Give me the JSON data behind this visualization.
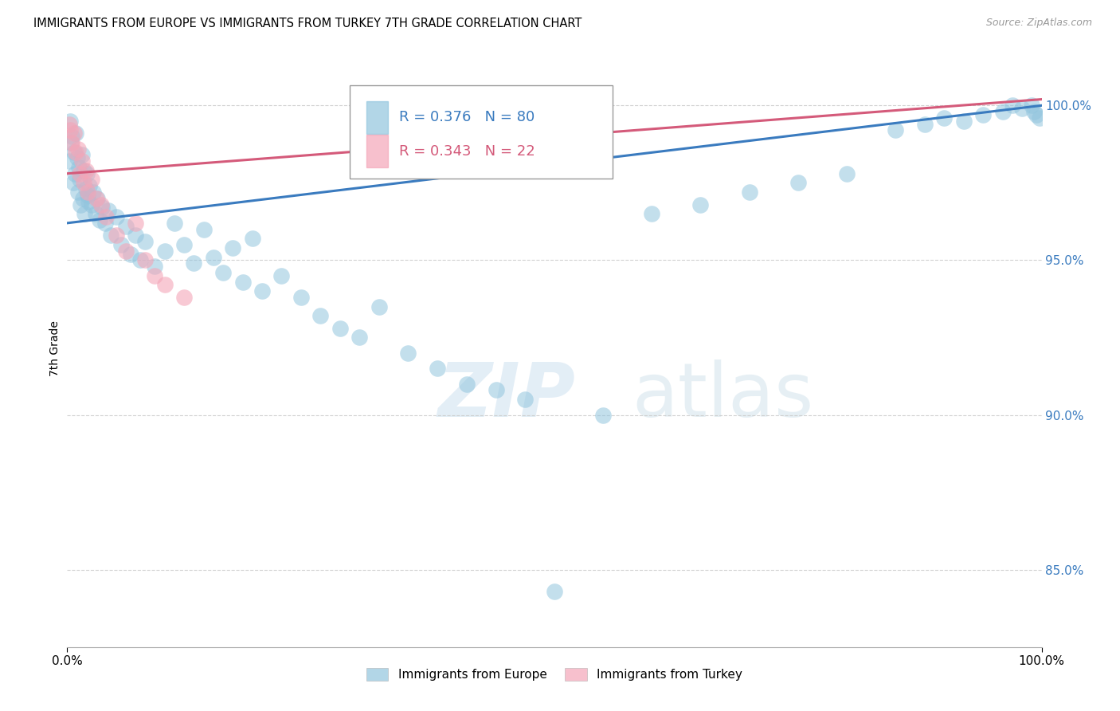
{
  "title": "IMMIGRANTS FROM EUROPE VS IMMIGRANTS FROM TURKEY 7TH GRADE CORRELATION CHART",
  "source": "Source: ZipAtlas.com",
  "ylabel_label": "7th Grade",
  "xmin": 0.0,
  "xmax": 100.0,
  "ymin": 82.5,
  "ymax": 101.8,
  "R_europe": 0.376,
  "N_europe": 80,
  "R_turkey": 0.343,
  "N_turkey": 22,
  "europe_color": "#92c5de",
  "turkey_color": "#f4a6b8",
  "europe_line_color": "#3a7bbf",
  "turkey_line_color": "#d45a7a",
  "legend_europe": "Immigrants from Europe",
  "legend_turkey": "Immigrants from Turkey",
  "watermark_zip": "ZIP",
  "watermark_atlas": "atlas",
  "yticks": [
    85.0,
    90.0,
    95.0,
    100.0
  ],
  "ytick_labels": [
    "85.0%",
    "90.0%",
    "95.0%",
    "100.0%"
  ],
  "xticks": [
    0.0,
    100.0
  ],
  "xtick_labels": [
    "0.0%",
    "100.0%"
  ],
  "europe_x": [
    0.2,
    0.3,
    0.4,
    0.5,
    0.6,
    0.7,
    0.8,
    0.9,
    1.0,
    1.1,
    1.2,
    1.3,
    1.4,
    1.5,
    1.6,
    1.7,
    1.8,
    1.9,
    2.0,
    2.1,
    2.2,
    2.3,
    2.5,
    2.7,
    2.9,
    3.1,
    3.3,
    3.6,
    3.9,
    4.2,
    4.5,
    5.0,
    5.5,
    6.0,
    6.5,
    7.0,
    7.5,
    8.0,
    9.0,
    10.0,
    11.0,
    12.0,
    13.0,
    14.0,
    15.0,
    16.0,
    17.0,
    18.0,
    19.0,
    20.0,
    22.0,
    24.0,
    26.0,
    28.0,
    30.0,
    32.0,
    35.0,
    38.0,
    41.0,
    44.0,
    47.0,
    50.0,
    55.0,
    60.0,
    65.0,
    70.0,
    75.0,
    80.0,
    85.0,
    88.0,
    90.0,
    92.0,
    94.0,
    96.0,
    97.0,
    98.0,
    99.0,
    99.2,
    99.5,
    99.8
  ],
  "europe_y": [
    98.2,
    99.5,
    98.8,
    99.0,
    97.5,
    98.5,
    97.8,
    99.1,
    98.3,
    97.2,
    98.0,
    97.6,
    96.8,
    98.4,
    97.0,
    97.9,
    96.5,
    97.3,
    97.8,
    97.1,
    96.9,
    97.4,
    96.8,
    97.2,
    96.5,
    97.0,
    96.3,
    96.7,
    96.2,
    96.6,
    95.8,
    96.4,
    95.5,
    96.1,
    95.2,
    95.8,
    95.0,
    95.6,
    94.8,
    95.3,
    96.2,
    95.5,
    94.9,
    96.0,
    95.1,
    94.6,
    95.4,
    94.3,
    95.7,
    94.0,
    94.5,
    93.8,
    93.2,
    92.8,
    92.5,
    93.5,
    92.0,
    91.5,
    91.0,
    90.8,
    90.5,
    84.3,
    90.0,
    96.5,
    96.8,
    97.2,
    97.5,
    97.8,
    99.2,
    99.4,
    99.6,
    99.5,
    99.7,
    99.8,
    100.0,
    99.9,
    100.0,
    99.8,
    99.7,
    99.6
  ],
  "turkey_x": [
    0.2,
    0.3,
    0.5,
    0.7,
    0.9,
    1.1,
    1.3,
    1.5,
    1.7,
    1.9,
    2.1,
    2.5,
    3.0,
    3.5,
    4.0,
    5.0,
    6.0,
    7.0,
    8.0,
    9.0,
    10.0,
    12.0
  ],
  "turkey_y": [
    99.4,
    99.2,
    98.8,
    99.1,
    98.5,
    98.6,
    97.8,
    98.2,
    97.5,
    97.9,
    97.2,
    97.6,
    97.0,
    96.8,
    96.4,
    95.8,
    95.3,
    96.2,
    95.0,
    94.5,
    94.2,
    93.8
  ],
  "trendline_europe_x0": 0.0,
  "trendline_europe_y0": 96.2,
  "trendline_europe_x1": 100.0,
  "trendline_europe_y1": 100.0,
  "trendline_turkey_x0": 0.0,
  "trendline_turkey_y0": 97.8,
  "trendline_turkey_x1": 100.0,
  "trendline_turkey_y1": 100.2
}
